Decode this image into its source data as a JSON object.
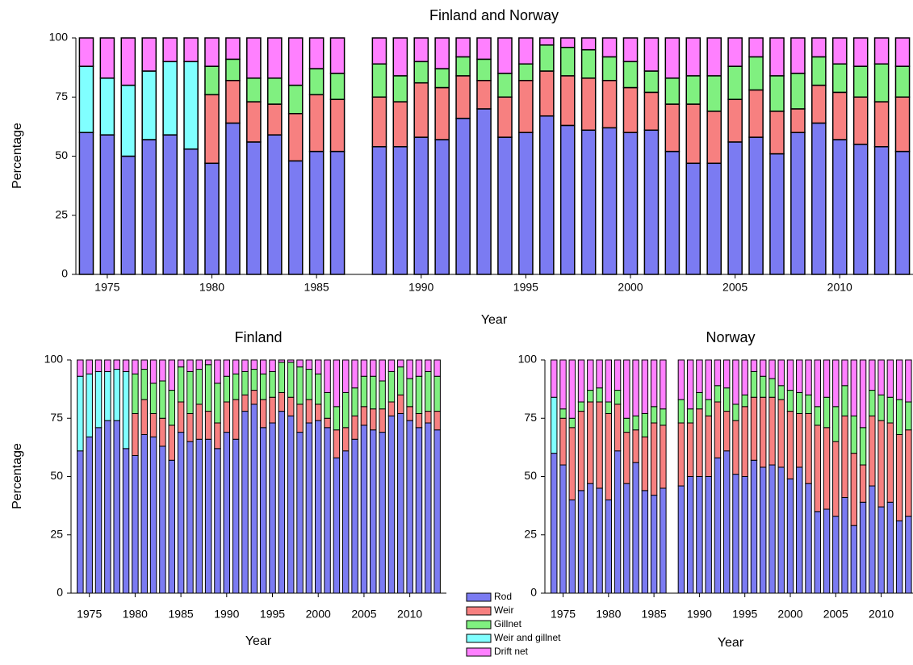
{
  "chart_data": [
    {
      "type": "bar",
      "stacked": true,
      "title": "Finland and Norway",
      "xlabel": "Year",
      "ylabel": "Percentage",
      "x": [
        1974,
        1975,
        1976,
        1977,
        1978,
        1979,
        1980,
        1981,
        1982,
        1983,
        1984,
        1985,
        1986,
        1987,
        1988,
        1989,
        1990,
        1991,
        1992,
        1993,
        1994,
        1995,
        1996,
        1997,
        1998,
        1999,
        2000,
        2001,
        2002,
        2003,
        2004,
        2005,
        2006,
        2007,
        2008,
        2009,
        2010,
        2011,
        2012,
        2013
      ],
      "xlim": [
        1973.5,
        2013.5
      ],
      "xticks": [
        1975,
        1980,
        1985,
        1990,
        1995,
        2000,
        2005,
        2010
      ],
      "ylim": [
        0,
        100
      ],
      "yticks": [
        0,
        25,
        50,
        75,
        100
      ],
      "series": [
        {
          "name": "Rod",
          "color": "#7b7bf2",
          "values": [
            60,
            59,
            50,
            57,
            59,
            53,
            47,
            64,
            56,
            59,
            48,
            52,
            52,
            null,
            54,
            54,
            58,
            57,
            66,
            70,
            58,
            60,
            67,
            63,
            61,
            62,
            60,
            61,
            52,
            47,
            47,
            56,
            58,
            51,
            60,
            64,
            57,
            55,
            54,
            52
          ]
        },
        {
          "name": "Weir",
          "color": "#f78080",
          "values": [
            0,
            0,
            0,
            0,
            0,
            0,
            29,
            18,
            17,
            13,
            20,
            24,
            22,
            null,
            21,
            19,
            23,
            22,
            18,
            12,
            17,
            22,
            19,
            21,
            22,
            20,
            19,
            16,
            20,
            25,
            22,
            18,
            20,
            18,
            10,
            16,
            20,
            20,
            19,
            23
          ]
        },
        {
          "name": "Gillnet",
          "color": "#80f080",
          "values": [
            0,
            0,
            0,
            0,
            0,
            0,
            12,
            9,
            10,
            11,
            12,
            11,
            11,
            null,
            14,
            11,
            9,
            8,
            8,
            9,
            10,
            7,
            11,
            12,
            12,
            10,
            11,
            9,
            11,
            12,
            15,
            14,
            14,
            15,
            15,
            12,
            12,
            13,
            16,
            13
          ]
        },
        {
          "name": "Weir and gillnet",
          "color": "#80ffff",
          "values": [
            28,
            24,
            30,
            29,
            31,
            37,
            0,
            0,
            0,
            0,
            0,
            0,
            0,
            null,
            0,
            0,
            0,
            0,
            0,
            0,
            0,
            0,
            0,
            0,
            0,
            0,
            0,
            0,
            0,
            0,
            0,
            0,
            0,
            0,
            0,
            0,
            0,
            0,
            0,
            0
          ]
        },
        {
          "name": "Drift net",
          "color": "#ff80ff",
          "values": [
            12,
            17,
            20,
            14,
            10,
            10,
            12,
            9,
            17,
            17,
            20,
            13,
            15,
            null,
            11,
            16,
            10,
            13,
            8,
            9,
            15,
            11,
            3,
            4,
            5,
            8,
            10,
            14,
            17,
            16,
            16,
            12,
            8,
            16,
            15,
            8,
            11,
            12,
            11,
            12
          ]
        }
      ]
    },
    {
      "type": "bar",
      "stacked": true,
      "title": "Finland",
      "xlabel": "Year",
      "ylabel": "Percentage",
      "x": [
        1974,
        1975,
        1976,
        1977,
        1978,
        1979,
        1980,
        1981,
        1982,
        1983,
        1984,
        1985,
        1986,
        1987,
        1988,
        1989,
        1990,
        1991,
        1992,
        1993,
        1994,
        1995,
        1996,
        1997,
        1998,
        1999,
        2000,
        2001,
        2002,
        2003,
        2004,
        2005,
        2006,
        2007,
        2008,
        2009,
        2010,
        2011,
        2012,
        2013
      ],
      "xlim": [
        1973,
        2014
      ],
      "xticks": [
        1975,
        1980,
        1985,
        1990,
        1995,
        2000,
        2005,
        2010
      ],
      "ylim": [
        0,
        100
      ],
      "yticks": [
        0,
        25,
        50,
        75,
        100
      ],
      "series": [
        {
          "values": [
            61,
            67,
            71,
            74,
            74,
            62,
            59,
            68,
            67,
            63,
            57,
            69,
            65,
            66,
            66,
            62,
            69,
            66,
            78,
            81,
            71,
            73,
            78,
            76,
            69,
            73,
            74,
            71,
            58,
            61,
            66,
            72,
            70,
            69,
            76,
            77,
            74,
            71,
            73,
            70
          ]
        },
        {
          "values": [
            0,
            0,
            0,
            0,
            0,
            0,
            18,
            15,
            10,
            12,
            15,
            13,
            12,
            15,
            12,
            11,
            13,
            17,
            7,
            6,
            12,
            11,
            8,
            8,
            12,
            10,
            7,
            4,
            12,
            10,
            10,
            8,
            9,
            10,
            6,
            8,
            6,
            6,
            5,
            8
          ]
        },
        {
          "values": [
            0,
            0,
            0,
            0,
            0,
            0,
            17,
            13,
            13,
            16,
            15,
            15,
            18,
            15,
            20,
            17,
            11,
            11,
            10,
            9,
            11,
            11,
            13,
            15,
            16,
            13,
            13,
            11,
            10,
            15,
            12,
            13,
            14,
            12,
            13,
            12,
            12,
            16,
            17,
            15
          ]
        },
        {
          "values": [
            32,
            27,
            24,
            21,
            22,
            33,
            0,
            0,
            0,
            0,
            0,
            0,
            0,
            0,
            0,
            0,
            0,
            0,
            0,
            0,
            0,
            0,
            0,
            0,
            0,
            0,
            0,
            0,
            0,
            0,
            0,
            0,
            0,
            0,
            0,
            0,
            0,
            0,
            0,
            0
          ]
        },
        {
          "values": [
            7,
            6,
            5,
            5,
            4,
            5,
            6,
            4,
            10,
            9,
            13,
            3,
            5,
            4,
            2,
            10,
            7,
            6,
            5,
            4,
            6,
            5,
            1,
            1,
            3,
            4,
            6,
            14,
            20,
            14,
            12,
            7,
            7,
            9,
            5,
            3,
            8,
            7,
            5,
            7
          ]
        }
      ]
    },
    {
      "type": "bar",
      "stacked": true,
      "title": "Norway",
      "xlabel": "Year",
      "x": [
        1974,
        1975,
        1976,
        1977,
        1978,
        1979,
        1980,
        1981,
        1982,
        1983,
        1984,
        1985,
        1986,
        1987,
        1988,
        1989,
        1990,
        1991,
        1992,
        1993,
        1994,
        1995,
        1996,
        1997,
        1998,
        1999,
        2000,
        2001,
        2002,
        2003,
        2004,
        2005,
        2006,
        2007,
        2008,
        2009,
        2010,
        2011,
        2012,
        2013
      ],
      "xlim": [
        1973,
        2013.5
      ],
      "xticks": [
        1975,
        1980,
        1985,
        1990,
        1995,
        2000,
        2005,
        2010
      ],
      "ylim": [
        0,
        100
      ],
      "yticks": [
        0,
        25,
        50,
        75,
        100
      ],
      "series": [
        {
          "values": [
            60,
            55,
            40,
            44,
            47,
            45,
            40,
            61,
            47,
            56,
            44,
            42,
            45,
            null,
            46,
            50,
            50,
            50,
            58,
            61,
            51,
            50,
            57,
            54,
            55,
            54,
            49,
            54,
            47,
            35,
            36,
            33,
            41,
            29,
            39,
            46,
            37,
            39,
            31,
            33
          ]
        },
        {
          "values": [
            0,
            20,
            31,
            34,
            35,
            37,
            37,
            20,
            22,
            14,
            23,
            31,
            27,
            null,
            27,
            23,
            29,
            26,
            24,
            17,
            23,
            30,
            27,
            30,
            29,
            29,
            29,
            23,
            30,
            37,
            35,
            32,
            35,
            31,
            16,
            30,
            37,
            34,
            37,
            37
          ]
        },
        {
          "values": [
            0,
            4,
            4,
            4,
            5,
            6,
            5,
            6,
            6,
            6,
            10,
            7,
            7,
            null,
            10,
            6,
            7,
            7,
            7,
            10,
            7,
            5,
            11,
            9,
            8,
            6,
            9,
            9,
            8,
            8,
            13,
            15,
            13,
            16,
            16,
            11,
            11,
            11,
            15,
            12
          ]
        },
        {
          "values": [
            24,
            0,
            0,
            0,
            0,
            0,
            0,
            0,
            0,
            0,
            0,
            0,
            0,
            null,
            0,
            0,
            0,
            0,
            0,
            0,
            0,
            0,
            0,
            0,
            0,
            0,
            0,
            0,
            0,
            0,
            0,
            0,
            0,
            0,
            0,
            0,
            0,
            0,
            0,
            0
          ]
        },
        {
          "values": [
            16,
            21,
            25,
            18,
            13,
            12,
            18,
            13,
            25,
            24,
            23,
            20,
            21,
            null,
            17,
            21,
            14,
            17,
            11,
            12,
            19,
            15,
            5,
            7,
            8,
            11,
            13,
            14,
            15,
            20,
            16,
            20,
            11,
            24,
            29,
            13,
            15,
            16,
            17,
            18
          ]
        }
      ]
    }
  ]
}
